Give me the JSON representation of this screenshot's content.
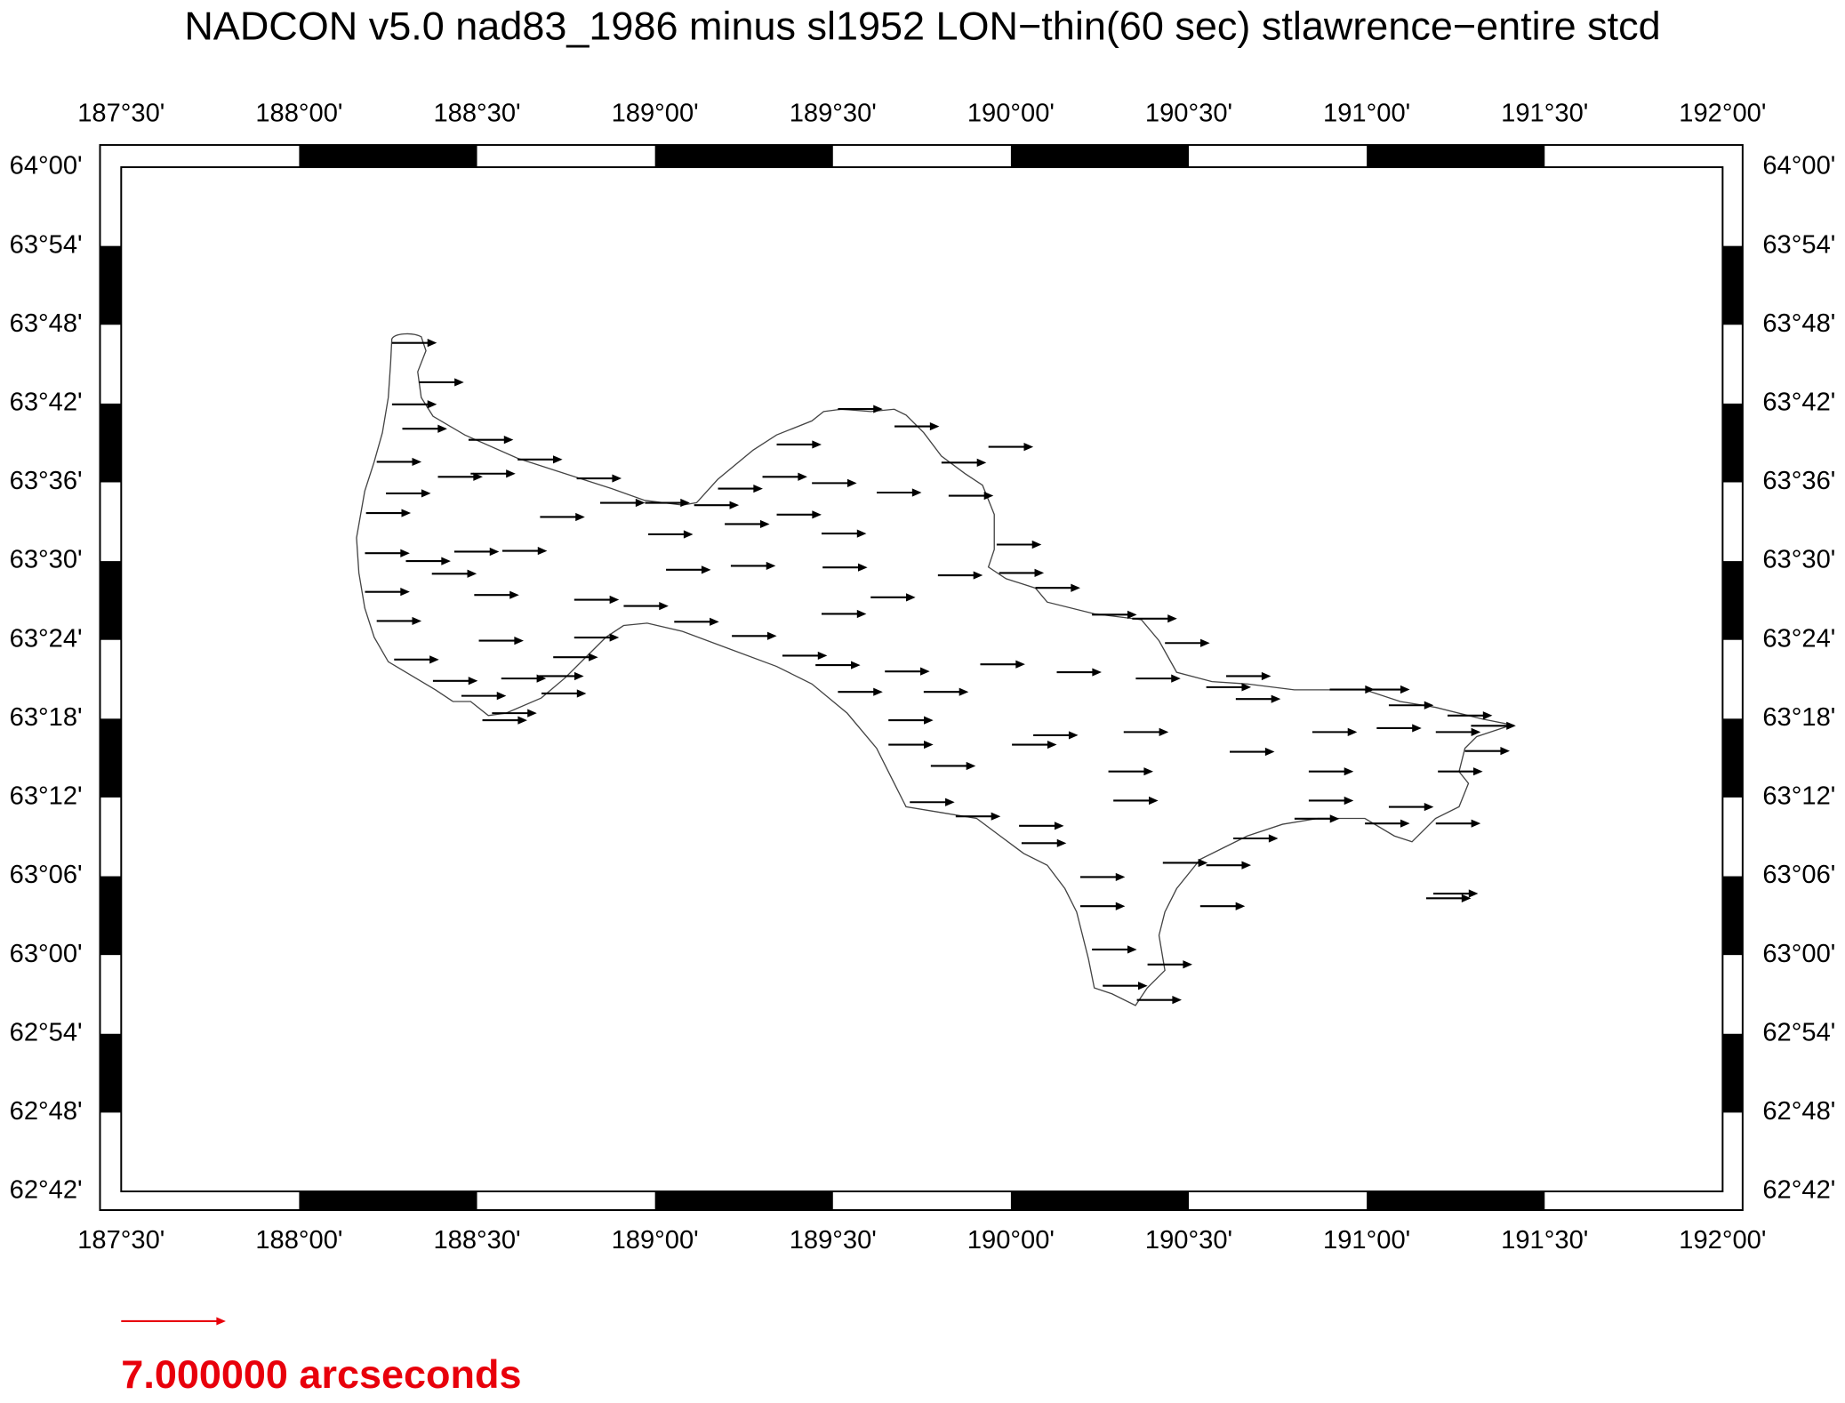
{
  "title": "NADCON v5.0 nad83_1986 minus sl1952 LON−thin(60 sec) stlawrence−entire stcd",
  "map": {
    "xlim": [
      187.5,
      192
    ],
    "ylim": [
      62.7,
      64
    ],
    "xticks": [
      {
        "value": 187.5,
        "label": "187°30'"
      },
      {
        "value": 188,
        "label": "188°00'"
      },
      {
        "value": 188.5,
        "label": "188°30'"
      },
      {
        "value": 189,
        "label": "189°00'"
      },
      {
        "value": 189.5,
        "label": "189°30'"
      },
      {
        "value": 190,
        "label": "190°00'"
      },
      {
        "value": 190.5,
        "label": "190°30'"
      },
      {
        "value": 191,
        "label": "191°00'"
      },
      {
        "value": 191.5,
        "label": "191°30'"
      },
      {
        "value": 192,
        "label": "192°00'"
      }
    ],
    "yticks": [
      {
        "value": 64,
        "label": "64°00'"
      },
      {
        "value": 63.9,
        "label": "63°54'"
      },
      {
        "value": 63.8,
        "label": "63°48'"
      },
      {
        "value": 63.7,
        "label": "63°42'"
      },
      {
        "value": 63.6,
        "label": "63°36'"
      },
      {
        "value": 63.5,
        "label": "63°30'"
      },
      {
        "value": 63.4,
        "label": "63°24'"
      },
      {
        "value": 63.3,
        "label": "63°18'"
      },
      {
        "value": 63.2,
        "label": "63°12'"
      },
      {
        "value": 63.1,
        "label": "63°06'"
      },
      {
        "value": 63,
        "label": "63°00'"
      },
      {
        "value": 62.9,
        "label": "62°54'"
      },
      {
        "value": 62.8,
        "label": "62°48'"
      },
      {
        "value": 62.7,
        "label": "62°42'"
      }
    ],
    "vectors": [
      [
        188.261,
        63.777,
        3
      ],
      [
        188.337,
        63.727,
        3
      ],
      [
        188.261,
        63.699,
        3
      ],
      [
        188.29,
        63.668,
        3
      ],
      [
        188.476,
        63.654,
        3
      ],
      [
        188.218,
        63.626,
        3
      ],
      [
        188.614,
        63.629,
        3
      ],
      [
        188.39,
        63.607,
        3
      ],
      [
        188.482,
        63.611,
        3
      ],
      [
        188.78,
        63.605,
        3
      ],
      [
        188.244,
        63.586,
        3
      ],
      [
        188.188,
        63.561,
        3
      ],
      [
        188.677,
        63.556,
        3
      ],
      [
        188.846,
        63.574,
        3
      ],
      [
        188.972,
        63.574,
        3
      ],
      [
        188.981,
        63.534,
        3
      ],
      [
        189.11,
        63.571,
        3
      ],
      [
        189.177,
        63.592,
        3
      ],
      [
        189.302,
        63.607,
        3
      ],
      [
        189.441,
        63.599,
        3
      ],
      [
        189.342,
        63.559,
        3
      ],
      [
        189.196,
        63.547,
        3
      ],
      [
        189.342,
        63.648,
        3
      ],
      [
        189.514,
        63.693,
        3
      ],
      [
        189.673,
        63.671,
        3
      ],
      [
        189.805,
        63.625,
        3
      ],
      [
        189.937,
        63.645,
        3
      ],
      [
        189.623,
        63.587,
        3
      ],
      [
        189.825,
        63.583,
        3
      ],
      [
        189.468,
        63.535,
        3
      ],
      [
        189.031,
        63.489,
        3
      ],
      [
        189.213,
        63.494,
        3
      ],
      [
        189.471,
        63.492,
        3
      ],
      [
        188.185,
        63.51,
        3
      ],
      [
        188.3,
        63.5,
        3
      ],
      [
        188.436,
        63.512,
        3
      ],
      [
        188.571,
        63.513,
        3
      ],
      [
        188.373,
        63.484,
        3
      ],
      [
        188.185,
        63.461,
        3
      ],
      [
        188.492,
        63.457,
        3
      ],
      [
        188.218,
        63.424,
        3
      ],
      [
        188.773,
        63.451,
        3
      ],
      [
        188.912,
        63.443,
        3
      ],
      [
        189.054,
        63.423,
        3
      ],
      [
        188.505,
        63.399,
        3
      ],
      [
        188.773,
        63.403,
        3
      ],
      [
        189.216,
        63.405,
        3
      ],
      [
        189.358,
        63.38,
        3
      ],
      [
        189.468,
        63.433,
        3
      ],
      [
        189.606,
        63.454,
        3
      ],
      [
        189.795,
        63.482,
        3
      ],
      [
        189.96,
        63.521,
        3
      ],
      [
        189.967,
        63.485,
        3
      ],
      [
        190.069,
        63.466,
        3
      ],
      [
        190.228,
        63.432,
        3
      ],
      [
        190.341,
        63.427,
        3
      ],
      [
        190.433,
        63.396,
        3
      ],
      [
        188.267,
        63.375,
        3
      ],
      [
        188.714,
        63.378,
        3
      ],
      [
        188.376,
        63.348,
        3
      ],
      [
        188.568,
        63.351,
        3
      ],
      [
        188.674,
        63.354,
        3
      ],
      [
        188.456,
        63.329,
        3
      ],
      [
        188.681,
        63.332,
        3
      ],
      [
        188.542,
        63.307,
        3
      ],
      [
        188.515,
        63.298,
        3
      ],
      [
        189.451,
        63.368,
        3
      ],
      [
        189.514,
        63.334,
        3
      ],
      [
        189.646,
        63.36,
        3
      ],
      [
        189.755,
        63.334,
        3
      ],
      [
        189.656,
        63.298,
        3
      ],
      [
        189.656,
        63.267,
        3
      ],
      [
        189.775,
        63.24,
        3
      ],
      [
        189.914,
        63.369,
        3
      ],
      [
        190.129,
        63.359,
        3
      ],
      [
        190.351,
        63.351,
        3
      ],
      [
        190.549,
        63.34,
        3
      ],
      [
        190.605,
        63.354,
        3
      ],
      [
        190.632,
        63.325,
        3
      ],
      [
        190.615,
        63.258,
        3
      ],
      [
        190.896,
        63.337,
        3
      ],
      [
        190.995,
        63.337,
        3
      ],
      [
        191.062,
        63.317,
        3
      ],
      [
        191.227,
        63.304,
        3
      ],
      [
        190.847,
        63.283,
        3
      ],
      [
        191.028,
        63.288,
        3
      ],
      [
        191.194,
        63.283,
        3
      ],
      [
        191.293,
        63.291,
        3
      ],
      [
        191.276,
        63.259,
        3
      ],
      [
        191.2,
        63.233,
        3
      ],
      [
        190.837,
        63.233,
        3
      ],
      [
        190.837,
        63.196,
        3
      ],
      [
        191.062,
        63.188,
        3
      ],
      [
        191.194,
        63.167,
        3
      ],
      [
        190.995,
        63.167,
        3
      ],
      [
        190.797,
        63.173,
        3
      ],
      [
        190.625,
        63.148,
        3
      ],
      [
        190.427,
        63.117,
        3
      ],
      [
        190.549,
        63.114,
        3
      ],
      [
        190.532,
        63.062,
        3
      ],
      [
        190.384,
        62.988,
        3
      ],
      [
        190.354,
        62.943,
        3
      ],
      [
        190.258,
        62.961,
        3
      ],
      [
        190.228,
        63.007,
        3
      ],
      [
        190.195,
        63.062,
        3
      ],
      [
        190.195,
        63.099,
        3
      ],
      [
        190.274,
        63.233,
        3
      ],
      [
        190.288,
        63.196,
        3
      ],
      [
        190.317,
        63.283,
        3
      ],
      [
        190.003,
        63.267,
        3
      ],
      [
        190.063,
        63.279,
        3
      ],
      [
        190.023,
        63.164,
        3
      ],
      [
        190.03,
        63.142,
        3
      ],
      [
        189.845,
        63.176,
        3
      ],
      [
        189.716,
        63.194,
        3
      ],
      [
        191.167,
        63.072,
        3
      ],
      [
        191.187,
        63.078,
        3
      ]
    ],
    "scale": {
      "value": 7,
      "label": "7.000000 arcseconds",
      "color": "#e8000b"
    }
  }
}
